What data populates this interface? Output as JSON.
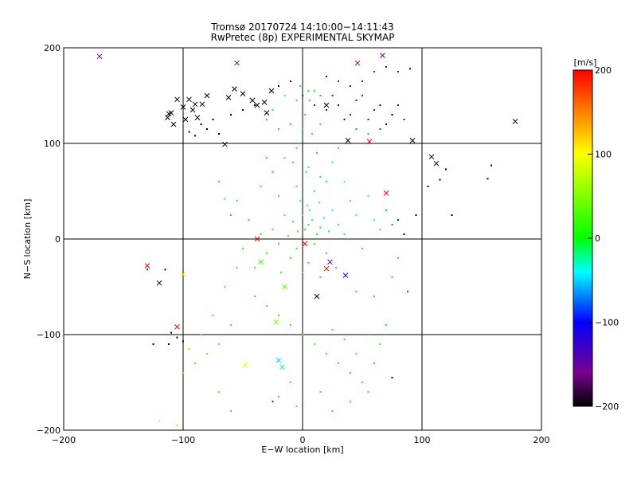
{
  "chart_data": {
    "type": "scatter",
    "title": "Tromsø 20170724 14:10:00−14:11:43",
    "subtitle": "RwPretec (8p) EXPERIMENTAL SKYMAP",
    "xlabel": "E−W location [km]",
    "ylabel": "N−S location [km]",
    "xlim": [
      -200,
      200
    ],
    "ylim": [
      -200,
      200
    ],
    "xticks": [
      -200,
      -100,
      0,
      100,
      200
    ],
    "yticks": [
      -200,
      -100,
      0,
      100,
      200
    ],
    "xtick_labels": [
      "−200",
      "−100",
      "0",
      "100",
      "200"
    ],
    "ytick_labels": [
      "−200",
      "−100",
      "0",
      "100",
      "200"
    ],
    "grid": true,
    "colorbar": {
      "label": "[m/s]",
      "min": -200,
      "max": 200,
      "ticks": [
        200,
        100,
        0,
        -100,
        -200
      ],
      "tick_labels": [
        "200",
        "100",
        "0",
        "−100",
        "−200"
      ],
      "colormap": [
        "#000000",
        "#7a0090",
        "#0000ff",
        "#00ffff",
        "#00ff00",
        "#ffff00",
        "#ff0000"
      ]
    },
    "series": [
      {
        "marker": "cross",
        "points": [
          [
            -170,
            191,
            -160
          ],
          [
            -55,
            184,
            -160
          ],
          [
            46,
            184,
            -160
          ],
          [
            67,
            192,
            -150
          ],
          [
            -105,
            146,
            -200
          ],
          [
            -100,
            138,
            -200
          ],
          [
            -95,
            146,
            -200
          ],
          [
            -90,
            141,
            -200
          ],
          [
            -110,
            132,
            -200
          ],
          [
            -113,
            127,
            -200
          ],
          [
            -108,
            120,
            -200
          ],
          [
            -98,
            125,
            -200
          ],
          [
            -92,
            135,
            -200
          ],
          [
            -88,
            127,
            -200
          ],
          [
            -84,
            141,
            -200
          ],
          [
            -80,
            150,
            -200
          ],
          [
            -62,
            148,
            -200
          ],
          [
            -57,
            157,
            -200
          ],
          [
            -50,
            152,
            -200
          ],
          [
            -42,
            145,
            -200
          ],
          [
            -38,
            140,
            -200
          ],
          [
            -32,
            143,
            -200
          ],
          [
            -30,
            132,
            -200
          ],
          [
            -26,
            155,
            -200
          ],
          [
            -65,
            99,
            -200
          ],
          [
            20,
            140,
            -200
          ],
          [
            38,
            103,
            -200
          ],
          [
            92,
            103,
            -200
          ],
          [
            108,
            86,
            -200
          ],
          [
            112,
            79,
            -200
          ],
          [
            178,
            123,
            -200
          ],
          [
            -112,
            131,
            -200
          ],
          [
            -38,
            0,
            200
          ],
          [
            70,
            48,
            200
          ],
          [
            2,
            -5,
            200
          ],
          [
            20,
            -31,
            200
          ],
          [
            -105,
            -92,
            200
          ],
          [
            56,
            102,
            200
          ],
          [
            -120,
            -46,
            -200
          ],
          [
            12,
            -60,
            -200
          ],
          [
            36,
            -38,
            -120
          ],
          [
            23,
            -24,
            -120
          ],
          [
            -20,
            -127,
            -50
          ],
          [
            -17,
            -134,
            -20
          ],
          [
            -22,
            -87,
            50
          ],
          [
            -48,
            -132,
            90
          ],
          [
            -35,
            -24,
            20
          ],
          [
            -15,
            -50,
            30
          ],
          [
            -130,
            -28,
            200
          ],
          [
            -100,
            -37,
            110
          ]
        ]
      },
      {
        "marker": "dot",
        "points": [
          [
            2,
            10,
            0
          ],
          [
            5,
            15,
            -10
          ],
          [
            -4,
            8,
            5
          ],
          [
            8,
            20,
            -20
          ],
          [
            12,
            5,
            0
          ],
          [
            -8,
            18,
            -15
          ],
          [
            0,
            25,
            -30
          ],
          [
            6,
            30,
            -25
          ],
          [
            15,
            12,
            -5
          ],
          [
            -12,
            3,
            10
          ],
          [
            10,
            -5,
            10
          ],
          [
            -5,
            -10,
            15
          ],
          [
            18,
            22,
            -30
          ],
          [
            22,
            8,
            -10
          ],
          [
            -15,
            25,
            -20
          ],
          [
            -20,
            -5,
            10
          ],
          [
            25,
            30,
            -40
          ],
          [
            4,
            35,
            -35
          ],
          [
            -2,
            40,
            -30
          ],
          [
            14,
            38,
            -40
          ],
          [
            30,
            15,
            -20
          ],
          [
            -25,
            10,
            0
          ],
          [
            -10,
            -20,
            15
          ],
          [
            5,
            -25,
            10
          ],
          [
            20,
            -15,
            5
          ],
          [
            -30,
            -15,
            15
          ],
          [
            35,
            5,
            -15
          ],
          [
            -35,
            5,
            5
          ],
          [
            0,
            -35,
            20
          ],
          [
            15,
            -40,
            10
          ],
          [
            -18,
            -35,
            20
          ],
          [
            28,
            -30,
            10
          ],
          [
            -40,
            -30,
            20
          ],
          [
            10,
            50,
            -30
          ],
          [
            -5,
            55,
            -20
          ],
          [
            20,
            60,
            -10
          ],
          [
            -20,
            45,
            -15
          ],
          [
            40,
            40,
            -30
          ],
          [
            -45,
            20,
            0
          ],
          [
            45,
            25,
            -35
          ],
          [
            50,
            -10,
            5
          ],
          [
            -50,
            -10,
            10
          ],
          [
            3,
            70,
            -10
          ],
          [
            -8,
            80,
            0
          ],
          [
            12,
            90,
            5
          ],
          [
            -3,
            100,
            0
          ],
          [
            8,
            110,
            10
          ],
          [
            -10,
            120,
            5
          ],
          [
            2,
            130,
            -5
          ],
          [
            6,
            145,
            0
          ],
          [
            -2,
            160,
            0
          ],
          [
            10,
            155,
            -10
          ],
          [
            -15,
            150,
            -20
          ],
          [
            15,
            120,
            0
          ],
          [
            25,
            80,
            -10
          ],
          [
            -25,
            70,
            0
          ],
          [
            30,
            95,
            -5
          ],
          [
            -30,
            85,
            5
          ],
          [
            35,
            60,
            -40
          ],
          [
            -35,
            55,
            0
          ],
          [
            55,
            45,
            -30
          ],
          [
            -55,
            40,
            -10
          ],
          [
            60,
            20,
            -40
          ],
          [
            65,
            10,
            -50
          ],
          [
            70,
            30,
            -60
          ],
          [
            75,
            15,
            -70
          ],
          [
            80,
            20,
            -90
          ],
          [
            85,
            5,
            -200
          ],
          [
            95,
            25,
            -200
          ],
          [
            105,
            55,
            -200
          ],
          [
            115,
            62,
            -200
          ],
          [
            125,
            25,
            -200
          ],
          [
            120,
            73,
            -200
          ],
          [
            155,
            63,
            -200
          ],
          [
            158,
            77,
            -200
          ],
          [
            -40,
            -60,
            10
          ],
          [
            -30,
            -70,
            20
          ],
          [
            -20,
            -80,
            15
          ],
          [
            -10,
            -90,
            10
          ],
          [
            0,
            -100,
            20
          ],
          [
            10,
            -110,
            15
          ],
          [
            20,
            -120,
            10
          ],
          [
            30,
            -130,
            10
          ],
          [
            40,
            -140,
            5
          ],
          [
            50,
            -150,
            5
          ],
          [
            60,
            -130,
            10
          ],
          [
            45,
            -120,
            5
          ],
          [
            35,
            -105,
            10
          ],
          [
            25,
            -95,
            15
          ],
          [
            55,
            -100,
            10
          ],
          [
            65,
            -110,
            5
          ],
          [
            70,
            -90,
            0
          ],
          [
            60,
            -60,
            10
          ],
          [
            45,
            -55,
            5
          ],
          [
            75,
            -40,
            0
          ],
          [
            80,
            -20,
            -5
          ],
          [
            -60,
            -90,
            20
          ],
          [
            -70,
            -110,
            25
          ],
          [
            -80,
            -120,
            30
          ],
          [
            -90,
            -130,
            30
          ],
          [
            -100,
            -140,
            40
          ],
          [
            -85,
            -100,
            25
          ],
          [
            -75,
            -80,
            20
          ],
          [
            -65,
            -50,
            15
          ],
          [
            -55,
            -30,
            10
          ],
          [
            -95,
            -115,
            50
          ],
          [
            -110,
            -98,
            -200
          ],
          [
            -112,
            -110,
            -200
          ],
          [
            -125,
            -110,
            -200
          ],
          [
            -105,
            -103,
            -200
          ],
          [
            -100,
            -107,
            -200
          ],
          [
            -130,
            -32,
            200
          ],
          [
            -115,
            -32,
            -200
          ],
          [
            -65,
            42,
            10
          ],
          [
            -70,
            60,
            0
          ],
          [
            -60,
            25,
            10
          ],
          [
            -10,
            -150,
            15
          ],
          [
            -20,
            -165,
            20
          ],
          [
            -5,
            -175,
            10
          ],
          [
            15,
            -160,
            10
          ],
          [
            25,
            -180,
            5
          ],
          [
            40,
            -170,
            10
          ],
          [
            55,
            -160,
            10
          ],
          [
            75,
            -145,
            -200
          ],
          [
            -25,
            -170,
            -160
          ],
          [
            -120,
            -190,
            80
          ],
          [
            -105,
            -195,
            60
          ],
          [
            -60,
            -180,
            30
          ],
          [
            -70,
            -160,
            30
          ],
          [
            88,
            -55,
            200
          ],
          [
            -40,
            140,
            -200
          ],
          [
            -70,
            110,
            -200
          ],
          [
            -80,
            115,
            -200
          ],
          [
            -90,
            108,
            -200
          ],
          [
            -75,
            125,
            -200
          ],
          [
            -85,
            120,
            -200
          ],
          [
            -95,
            112,
            -200
          ],
          [
            -60,
            130,
            -200
          ],
          [
            -50,
            135,
            -200
          ],
          [
            -20,
            160,
            -180
          ],
          [
            -10,
            165,
            -170
          ],
          [
            0,
            150,
            -150
          ],
          [
            10,
            140,
            -120
          ],
          [
            20,
            135,
            -110
          ],
          [
            30,
            140,
            -100
          ],
          [
            40,
            130,
            -120
          ],
          [
            45,
            145,
            -140
          ],
          [
            50,
            150,
            -160
          ],
          [
            55,
            125,
            -130
          ],
          [
            60,
            135,
            -170
          ],
          [
            65,
            140,
            -180
          ],
          [
            70,
            120,
            -190
          ],
          [
            75,
            130,
            -200
          ],
          [
            80,
            140,
            -170
          ],
          [
            85,
            125,
            -150
          ],
          [
            40,
            160,
            -130
          ],
          [
            30,
            165,
            -140
          ],
          [
            50,
            165,
            -150
          ],
          [
            60,
            175,
            -160
          ],
          [
            70,
            180,
            -120
          ],
          [
            80,
            175,
            -140
          ],
          [
            90,
            178,
            -200
          ],
          [
            25,
            150,
            -90
          ],
          [
            35,
            125,
            -100
          ],
          [
            45,
            115,
            -70
          ],
          [
            55,
            110,
            -60
          ],
          [
            65,
            115,
            -80
          ],
          [
            5,
            155,
            0
          ],
          [
            -5,
            145,
            -10
          ],
          [
            15,
            150,
            -60
          ],
          [
            20,
            170,
            -100
          ],
          [
            -30,
            125,
            0
          ],
          [
            -20,
            115,
            5
          ],
          [
            -5,
            95,
            10
          ],
          [
            -15,
            85,
            15
          ],
          [
            5,
            75,
            20
          ],
          [
            15,
            65,
            15
          ],
          [
            -25,
            135,
            10
          ],
          [
            0,
            115,
            5
          ]
        ]
      }
    ]
  }
}
